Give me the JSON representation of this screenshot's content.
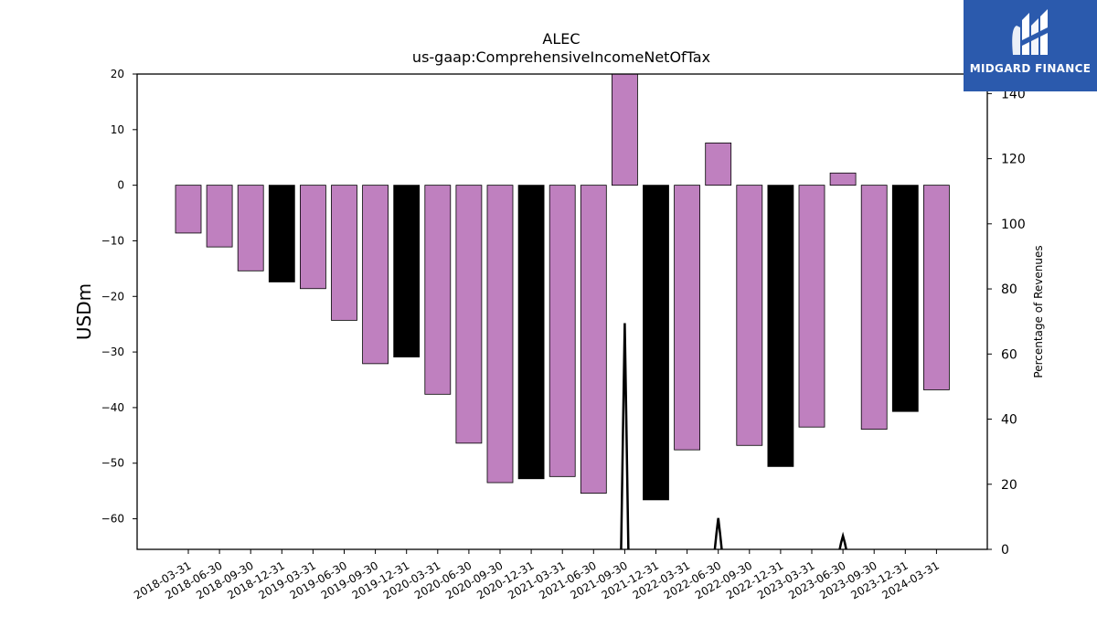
{
  "chart_data": {
    "type": "bar",
    "title": "ALEC",
    "subtitle": "us-gaap:ComprehensiveIncomeNetOfTax",
    "ylabel": "USDm",
    "y2label": "Percentage of Revenues",
    "ylim": [
      -65.5,
      20
    ],
    "y2lim": [
      0,
      146
    ],
    "yticks": [
      20,
      10,
      0,
      -10,
      -20,
      -30,
      -40,
      -50,
      -60
    ],
    "yticklabels": [
      "20",
      "10",
      "0",
      "−10",
      "−20",
      "−30",
      "−40",
      "−50",
      "−60"
    ],
    "y2ticks": [
      0,
      20,
      40,
      60,
      80,
      100,
      120,
      140
    ],
    "categories": [
      "2018-03-31",
      "2018-06-30",
      "2018-09-30",
      "2018-12-31",
      "2019-03-31",
      "2019-06-30",
      "2019-09-30",
      "2019-12-31",
      "2020-03-31",
      "2020-06-30",
      "2020-09-30",
      "2020-12-31",
      "2021-03-31",
      "2021-06-30",
      "2021-09-30",
      "2021-12-31",
      "2022-03-31",
      "2022-06-30",
      "2022-09-30",
      "2022-12-31",
      "2023-03-31",
      "2023-06-30",
      "2023-09-30",
      "2023-12-31",
      "2024-03-31"
    ],
    "values": [
      -8.6,
      -11.1,
      -15.4,
      -17.4,
      -18.6,
      -24.3,
      -32.1,
      -30.9,
      -37.6,
      -46.4,
      -53.5,
      -52.8,
      -52.4,
      -55.4,
      21.0,
      -56.6,
      -47.6,
      7.6,
      -46.8,
      -50.6,
      -43.5,
      2.2,
      -43.9,
      -40.7,
      -36.8
    ],
    "colors": [
      "#bf80bf",
      "#bf80bf",
      "#bf80bf",
      "#000000",
      "#bf80bf",
      "#bf80bf",
      "#bf80bf",
      "#000000",
      "#bf80bf",
      "#bf80bf",
      "#bf80bf",
      "#000000",
      "#bf80bf",
      "#bf80bf",
      "#bf80bf",
      "#000000",
      "#bf80bf",
      "#bf80bf",
      "#bf80bf",
      "#000000",
      "#bf80bf",
      "#bf80bf",
      "#bf80bf",
      "#000000",
      "#bf80bf"
    ],
    "line_series": {
      "axis": "secondary",
      "values": [
        0,
        0,
        0,
        0,
        0,
        0,
        0,
        0,
        0,
        0,
        0,
        0,
        0,
        0,
        69.5,
        0,
        0,
        9.6,
        0,
        0,
        0,
        4.1,
        0,
        0,
        0
      ],
      "color": "#000000"
    },
    "grid": false
  },
  "logo": {
    "text": "MIDGARD FINANCE",
    "background": "#2b5aad"
  }
}
